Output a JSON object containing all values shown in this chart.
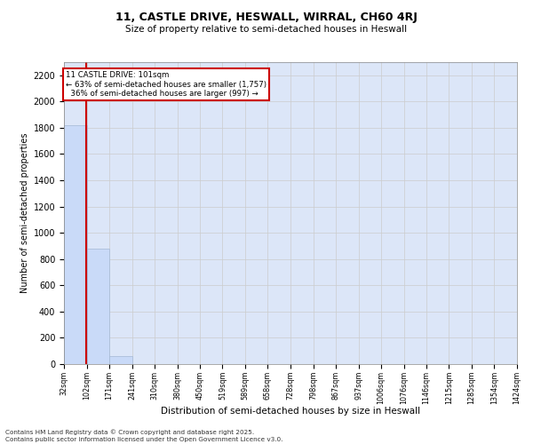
{
  "title_line1": "11, CASTLE DRIVE, HESWALL, WIRRAL, CH60 4RJ",
  "title_line2": "Size of property relative to semi-detached houses in Heswall",
  "xlabel": "Distribution of semi-detached houses by size in Heswall",
  "ylabel": "Number of semi-detached properties",
  "property_size": 101,
  "property_label": "11 CASTLE DRIVE: 101sqm",
  "pct_smaller": 63,
  "count_smaller": 1757,
  "pct_larger": 36,
  "count_larger": 997,
  "bin_edges": [
    32,
    102,
    171,
    241,
    310,
    380,
    450,
    519,
    589,
    658,
    728,
    798,
    867,
    937,
    1006,
    1076,
    1146,
    1215,
    1285,
    1354,
    1424
  ],
  "bin_labels": [
    "32sqm",
    "102sqm",
    "171sqm",
    "241sqm",
    "310sqm",
    "380sqm",
    "450sqm",
    "519sqm",
    "589sqm",
    "658sqm",
    "728sqm",
    "798sqm",
    "867sqm",
    "937sqm",
    "1006sqm",
    "1076sqm",
    "1146sqm",
    "1215sqm",
    "1285sqm",
    "1354sqm",
    "1424sqm"
  ],
  "bar_heights": [
    1820,
    880,
    60,
    0,
    0,
    0,
    0,
    0,
    0,
    0,
    0,
    0,
    0,
    0,
    0,
    0,
    0,
    0,
    0,
    0
  ],
  "bar_color": "#c9daf8",
  "bar_edge_color": "#a4b8d4",
  "highlight_color": "#cc0000",
  "annotation_box_color": "#cc0000",
  "ylim": [
    0,
    2300
  ],
  "yticks": [
    0,
    200,
    400,
    600,
    800,
    1000,
    1200,
    1400,
    1600,
    1800,
    2000,
    2200
  ],
  "grid_color": "#cccccc",
  "background_color": "#dce6f8",
  "footer_line1": "Contains HM Land Registry data © Crown copyright and database right 2025.",
  "footer_line2": "Contains public sector information licensed under the Open Government Licence v3.0."
}
